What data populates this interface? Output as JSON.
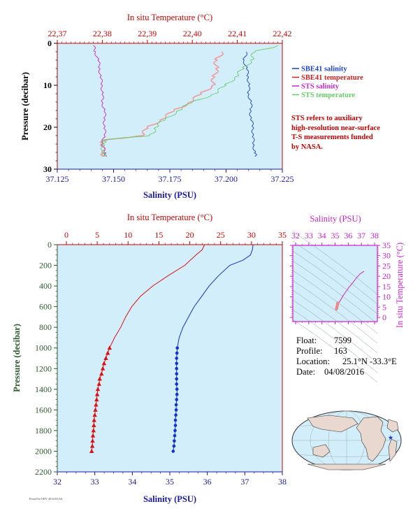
{
  "chart_data": [
    {
      "type": "line",
      "panel": "upper",
      "title": "",
      "x_top_label": "In situ Temperature (°C)",
      "x_top_ticks": [
        "22,37",
        "22,38",
        "22,39",
        "22,40",
        "22,41",
        "22,42"
      ],
      "x_top_range": [
        22.37,
        22.42
      ],
      "x_bottom_label": "Salinity (PSU)",
      "x_bottom_ticks": [
        "37.125",
        "37.150",
        "37.175",
        "37.200",
        "37.225"
      ],
      "x_bottom_range": [
        37.125,
        37.225
      ],
      "ylabel": "Pressure (decibar)",
      "y_ticks": [
        "0",
        "10",
        "20",
        "30"
      ],
      "y_range": [
        0,
        30
      ],
      "grid": false,
      "legend_position": "right",
      "series": [
        {
          "name": "SBE41 salinity",
          "color": "#1a3fcc",
          "axis": "salinity",
          "y": [
            2,
            4,
            6,
            8,
            10,
            12,
            14,
            16,
            18,
            20,
            22,
            24,
            26,
            27
          ],
          "x": [
            37.209,
            37.208,
            37.209,
            37.21,
            37.21,
            37.21,
            37.211,
            37.211,
            37.211,
            37.212,
            37.212,
            37.212,
            37.213,
            37.213
          ]
        },
        {
          "name": "SBE41 temperature",
          "color": "#d42020",
          "axis": "temperature",
          "y": [
            2,
            4,
            6,
            8,
            10,
            12,
            14,
            16,
            18,
            20,
            22,
            23,
            24,
            26,
            27
          ],
          "x": [
            22.4065,
            22.4055,
            22.4052,
            22.405,
            22.4045,
            22.402,
            22.3995,
            22.396,
            22.3935,
            22.39,
            22.389,
            22.3805,
            22.38,
            22.38,
            22.3805
          ]
        },
        {
          "name": "STS salinity",
          "color": "#cc22cc",
          "axis": "salinity",
          "y": [
            0.5,
            2,
            4,
            6,
            8,
            10,
            12,
            14,
            16,
            18,
            20,
            22,
            24,
            26,
            27
          ],
          "x": [
            37.141,
            37.142,
            37.143,
            37.144,
            37.144,
            37.145,
            37.145,
            37.145,
            37.146,
            37.146,
            37.146,
            37.146,
            37.145,
            37.146,
            37.147
          ]
        },
        {
          "name": "STS temperature",
          "color": "#66cc66",
          "axis": "temperature",
          "y": [
            0.5,
            2,
            4,
            6,
            8,
            10,
            12,
            14,
            16,
            18,
            20,
            22,
            23,
            24,
            26,
            27
          ],
          "x": [
            22.419,
            22.414,
            22.413,
            22.4115,
            22.4095,
            22.4075,
            22.405,
            22.4,
            22.397,
            22.394,
            22.392,
            22.3905,
            22.3805,
            22.38,
            22.3805,
            22.38
          ]
        }
      ],
      "legend": [
        "SBE41 salinity",
        "SBE41 temperature",
        "STS salinity",
        "STS temperature"
      ],
      "annotation": [
        "STS refers to auxiliary",
        "high-resolution near-surface",
        "T-S measurements funded",
        "by NASA."
      ]
    },
    {
      "type": "line",
      "panel": "lower",
      "title": "",
      "x_top_label": "In situ Temperature (°C)",
      "x_top_ticks": [
        "0",
        "5",
        "10",
        "15",
        "20",
        "25",
        "30",
        "35"
      ],
      "x_top_range": [
        0,
        35
      ],
      "x_bottom_label": "Salinity (PSU)",
      "x_bottom_ticks": [
        "32",
        "33",
        "34",
        "35",
        "36",
        "37",
        "38"
      ],
      "x_bottom_range": [
        32,
        38
      ],
      "ylabel": "Pressure (decibar)",
      "y_ticks": [
        "0",
        "200",
        "400",
        "600",
        "800",
        "1000",
        "1200",
        "1400",
        "1600",
        "1800",
        "2000",
        "2200"
      ],
      "y_range": [
        0,
        2200
      ],
      "grid": false,
      "series": [
        {
          "name": "Temperature",
          "color": "#dd1111",
          "axis": "temperature",
          "y": [
            0,
            50,
            100,
            200,
            300,
            400,
            500,
            600,
            700,
            800,
            900,
            1000,
            1050,
            1100,
            1150,
            1200,
            1250,
            1300,
            1350,
            1400,
            1450,
            1500,
            1550,
            1600,
            1650,
            1700,
            1750,
            1800,
            1850,
            1900,
            1950,
            2000
          ],
          "x": [
            22.4,
            22.0,
            21.0,
            19.2,
            16.5,
            14.0,
            12.0,
            10.6,
            9.6,
            8.8,
            7.8,
            7.0,
            6.7,
            6.4,
            6.1,
            5.9,
            5.7,
            5.4,
            5.3,
            5.1,
            5.0,
            4.9,
            4.8,
            4.7,
            4.6,
            4.5,
            4.45,
            4.4,
            4.3,
            4.25,
            4.2,
            4.1
          ]
        },
        {
          "name": "Salinity",
          "color": "#1133cc",
          "axis": "salinity",
          "y": [
            0,
            50,
            100,
            150,
            200,
            300,
            400,
            500,
            600,
            700,
            800,
            900,
            1000,
            1050,
            1100,
            1150,
            1200,
            1250,
            1300,
            1350,
            1400,
            1450,
            1500,
            1550,
            1600,
            1650,
            1700,
            1750,
            1800,
            1850,
            1900,
            1950,
            2000
          ],
          "x": [
            37.22,
            37.2,
            37.15,
            36.95,
            36.6,
            36.3,
            36.05,
            35.85,
            35.65,
            35.5,
            35.35,
            35.25,
            35.2,
            35.19,
            35.18,
            35.18,
            35.18,
            35.18,
            35.18,
            35.18,
            35.19,
            35.19,
            35.18,
            35.17,
            35.17,
            35.16,
            35.15,
            35.15,
            35.14,
            35.13,
            35.12,
            35.11,
            35.09
          ]
        }
      ]
    },
    {
      "type": "scatter",
      "panel": "ts-diagram",
      "x_top_label": "Salinity (PSU)",
      "x_ticks": [
        "32",
        "33",
        "34",
        "35",
        "36",
        "37",
        "38"
      ],
      "x_range": [
        32,
        38
      ],
      "y_right_label": "In situ Temperature (°C)",
      "y_ticks": [
        "0",
        "5",
        "10",
        "15",
        "20",
        "25",
        "30",
        "35"
      ],
      "y_range": [
        0,
        35
      ],
      "series": [
        {
          "name": "T-S",
          "color": "#cc22cc",
          "x": [
            35.1,
            35.15,
            35.2,
            35.3,
            35.45,
            35.6,
            35.8,
            36.0,
            36.3,
            36.6,
            36.9,
            37.2
          ],
          "y": [
            4.1,
            5.0,
            6.0,
            7.2,
            8.8,
            10.5,
            12.3,
            14.2,
            16.5,
            19.0,
            21.2,
            22.4
          ]
        },
        {
          "name": "T-S deep",
          "color": "#ee8888",
          "x": [
            35.1,
            35.12,
            35.15,
            35.18,
            35.2
          ],
          "y": [
            4.1,
            4.6,
            5.3,
            6.2,
            7.0
          ]
        }
      ]
    }
  ],
  "float_info": {
    "float_label": "Float:",
    "float_value": "7599",
    "profile_label": "Profile:",
    "profile_value": "163",
    "location_label": "Location:",
    "location_value": "25.1°N  -33.3°E",
    "date_label": "Date:",
    "date_value": "04/08/2016"
  },
  "footer_text": "FloatViz/ODV 2016/03/04",
  "colors": {
    "plot_bg": "#d2eefa",
    "axis_red": "#cc0000",
    "axis_blue": "#1a1aa0",
    "axis_green": "#2e5a2e",
    "ts_frame": "#cc22cc"
  }
}
